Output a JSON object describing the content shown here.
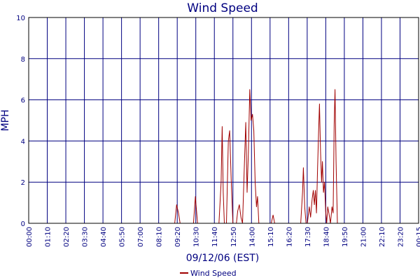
{
  "chart_data": {
    "type": "line",
    "title": "Wind Speed",
    "xlabel": "09/12/06 (EST)",
    "ylabel": "MPH",
    "ylim": [
      0,
      10
    ],
    "yticks": [
      "0",
      "2",
      "4",
      "6",
      "8",
      "10"
    ],
    "xlim": [
      "00:00",
      "00:15 next day"
    ],
    "xticks": [
      "00:00",
      "01:10",
      "02:20",
      "03:30",
      "04:40",
      "05:50",
      "07:00",
      "08:10",
      "09:20",
      "10:30",
      "11:40",
      "12:50",
      "14:00",
      "15:10",
      "16:20",
      "17:30",
      "18:40",
      "19:50",
      "21:00",
      "22:10",
      "23:20",
      "00:15"
    ],
    "grid": true,
    "legend": "bottom-center",
    "series": [
      {
        "name": "Wind Speed",
        "color": "#a00000",
        "points": [
          [
            "00:00",
            0
          ],
          [
            "09:05",
            0
          ],
          [
            "09:12",
            0.9
          ],
          [
            "09:19",
            0.5
          ],
          [
            "09:25",
            0
          ],
          [
            "10:15",
            0
          ],
          [
            "10:22",
            1.3
          ],
          [
            "10:30",
            0
          ],
          [
            "11:50",
            0
          ],
          [
            "11:58",
            2.0
          ],
          [
            "12:02",
            4.7
          ],
          [
            "12:06",
            1.5
          ],
          [
            "12:10",
            0
          ],
          [
            "12:18",
            0
          ],
          [
            "12:25",
            4.0
          ],
          [
            "12:30",
            4.5
          ],
          [
            "12:36",
            2.0
          ],
          [
            "12:42",
            0
          ],
          [
            "12:55",
            0
          ],
          [
            "13:00",
            0.6
          ],
          [
            "13:06",
            0.9
          ],
          [
            "13:12",
            0.3
          ],
          [
            "13:18",
            0
          ],
          [
            "13:24",
            2.5
          ],
          [
            "13:30",
            4.9
          ],
          [
            "13:35",
            1.5
          ],
          [
            "13:40",
            3.5
          ],
          [
            "13:45",
            6.5
          ],
          [
            "13:50",
            5.0
          ],
          [
            "13:55",
            5.3
          ],
          [
            "14:00",
            4.5
          ],
          [
            "14:05",
            2.0
          ],
          [
            "14:10",
            0.8
          ],
          [
            "14:14",
            1.3
          ],
          [
            "14:19",
            0
          ],
          [
            "15:05",
            0
          ],
          [
            "15:12",
            0.4
          ],
          [
            "15:18",
            0
          ],
          [
            "16:55",
            0
          ],
          [
            "17:02",
            1.5
          ],
          [
            "17:05",
            2.7
          ],
          [
            "17:10",
            0.8
          ],
          [
            "17:15",
            0
          ],
          [
            "17:20",
            0
          ],
          [
            "17:27",
            0.8
          ],
          [
            "17:32",
            0.3
          ],
          [
            "17:38",
            1.2
          ],
          [
            "17:42",
            1.6
          ],
          [
            "17:46",
            0.9
          ],
          [
            "17:50",
            1.6
          ],
          [
            "17:54",
            0.5
          ],
          [
            "17:58",
            2.7
          ],
          [
            "18:02",
            4.5
          ],
          [
            "18:05",
            5.8
          ],
          [
            "18:09",
            3.5
          ],
          [
            "18:13",
            2.0
          ],
          [
            "18:16",
            3.0
          ],
          [
            "18:20",
            1.5
          ],
          [
            "18:24",
            2.0
          ],
          [
            "18:28",
            0.6
          ],
          [
            "18:32",
            0
          ],
          [
            "18:36",
            0.8
          ],
          [
            "18:40",
            0.5
          ],
          [
            "18:46",
            0
          ],
          [
            "18:52",
            0.8
          ],
          [
            "18:56",
            0.5
          ],
          [
            "19:00",
            4.8
          ],
          [
            "19:03",
            6.5
          ],
          [
            "19:07",
            3.0
          ],
          [
            "19:12",
            0
          ],
          [
            "00:15+1",
            0
          ]
        ]
      }
    ]
  }
}
